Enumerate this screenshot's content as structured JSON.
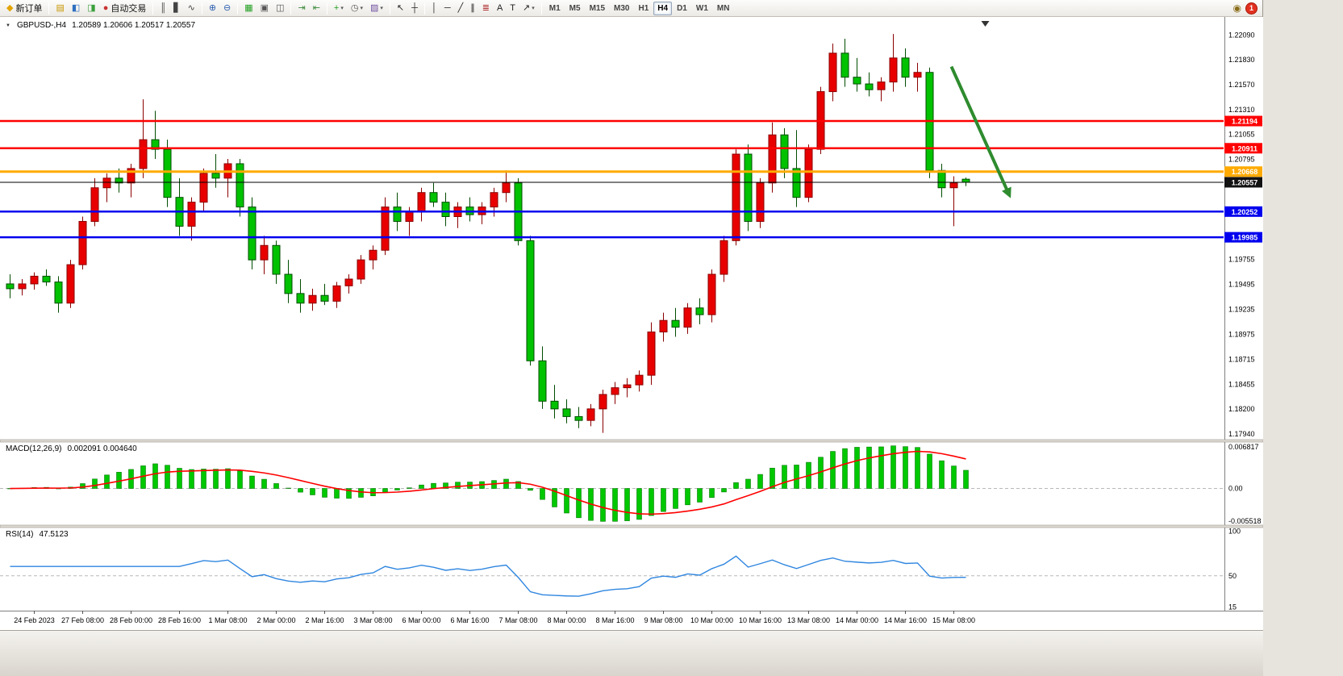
{
  "toolbar": {
    "notification_count": "1",
    "items": [
      {
        "type": "button",
        "name": "new-order-button",
        "glyph": "◆",
        "glyph_color": "#e3a400",
        "label": "新订单"
      },
      {
        "type": "sep"
      },
      {
        "type": "button",
        "name": "new-chart-button",
        "glyph": "▤",
        "glyph_color": "#c89600"
      },
      {
        "type": "button",
        "name": "market-watch-button",
        "glyph": "◧",
        "glyph_color": "#2e6fc0"
      },
      {
        "type": "button",
        "name": "navigator-button",
        "glyph": "◨",
        "glyph_color": "#3aa03a"
      },
      {
        "type": "button",
        "name": "auto-trading-button",
        "glyph": "●",
        "glyph_color": "#c83232",
        "label": "自动交易"
      },
      {
        "type": "sep"
      },
      {
        "type": "button",
        "name": "bar-chart-button",
        "glyph": "║",
        "glyph_color": "#444444"
      },
      {
        "type": "button",
        "name": "candlestick-chart-button",
        "glyph": "▋",
        "glyph_color": "#444444"
      },
      {
        "type": "button",
        "name": "line-chart-button",
        "glyph": "∿",
        "glyph_color": "#444444"
      },
      {
        "type": "sep"
      },
      {
        "type": "button",
        "name": "zoom-in-button",
        "glyph": "⊕",
        "glyph_color": "#2e5fb0"
      },
      {
        "type": "button",
        "name": "zoom-out-button",
        "glyph": "⊖",
        "glyph_color": "#2e5fb0"
      },
      {
        "type": "sep"
      },
      {
        "type": "button",
        "name": "tile-windows-button",
        "glyph": "▦",
        "glyph_color": "#1f9f1f"
      },
      {
        "type": "button",
        "name": "cascade-windows-button",
        "glyph": "▣",
        "glyph_color": "#555555"
      },
      {
        "type": "button",
        "name": "arrange-windows-button",
        "glyph": "◫",
        "glyph_color": "#555555"
      },
      {
        "type": "sep"
      },
      {
        "type": "button",
        "name": "auto-scroll-button",
        "glyph": "⇥",
        "glyph_color": "#3a8a3a"
      },
      {
        "type": "button",
        "name": "chart-shift-button",
        "glyph": "⇤",
        "glyph_color": "#3a8a3a"
      },
      {
        "type": "sep"
      },
      {
        "type": "button",
        "name": "indicators-button",
        "glyph": "+",
        "glyph_color": "#1f9f1f",
        "caret": true
      },
      {
        "type": "button",
        "name": "periods-button",
        "glyph": "◷",
        "glyph_color": "#555555",
        "caret": true
      },
      {
        "type": "button",
        "name": "templates-button",
        "glyph": "▨",
        "glyph_color": "#7050a0",
        "caret": true
      },
      {
        "type": "sep"
      },
      {
        "type": "button",
        "name": "cursor-button",
        "glyph": "↖",
        "glyph_color": "#222222"
      },
      {
        "type": "button",
        "name": "crosshair-button",
        "glyph": "┼",
        "glyph_color": "#222222"
      },
      {
        "type": "sep"
      },
      {
        "type": "button",
        "name": "vertical-line-button",
        "glyph": "│",
        "glyph_color": "#222222"
      },
      {
        "type": "button",
        "name": "horizontal-line-button",
        "glyph": "─",
        "glyph_color": "#222222"
      },
      {
        "type": "button",
        "name": "trendline-button",
        "glyph": "╱",
        "glyph_color": "#222222"
      },
      {
        "type": "button",
        "name": "channel-button",
        "glyph": "∥",
        "glyph_color": "#222222"
      },
      {
        "type": "button",
        "name": "fibonacci-button",
        "glyph": "≣",
        "glyph_color": "#b03030"
      },
      {
        "type": "button",
        "name": "text-button",
        "glyph": "A",
        "glyph_color": "#222222"
      },
      {
        "type": "button",
        "name": "text-label-button",
        "glyph": "T",
        "glyph_color": "#222222"
      },
      {
        "type": "button",
        "name": "arrows-button",
        "glyph": "↗",
        "glyph_color": "#222222",
        "caret": true
      },
      {
        "type": "sep"
      },
      {
        "type": "tf",
        "name": "timeframe-m1",
        "label": "M1"
      },
      {
        "type": "tf",
        "name": "timeframe-m5",
        "label": "M5"
      },
      {
        "type": "tf",
        "name": "timeframe-m15",
        "label": "M15"
      },
      {
        "type": "tf",
        "name": "timeframe-m30",
        "label": "M30"
      },
      {
        "type": "tf",
        "name": "timeframe-h1",
        "label": "H1"
      },
      {
        "type": "tf",
        "name": "timeframe-h4",
        "label": "H4",
        "active": true
      },
      {
        "type": "tf",
        "name": "timeframe-d1",
        "label": "D1"
      },
      {
        "type": "tf",
        "name": "timeframe-w1",
        "label": "W1"
      },
      {
        "type": "tf",
        "name": "timeframe-mn",
        "label": "MN"
      }
    ]
  },
  "chart": {
    "symbol_period": "GBPUSD-,H4",
    "ohlc": "1.20589 1.20606 1.20517 1.20557"
  },
  "chart_data": {
    "type": "candlestick",
    "symbol": "GBPUSD-",
    "timeframe": "H4",
    "colors": {
      "up": "#e80000",
      "down": "#00c200",
      "background": "#ffffff"
    },
    "price_axis": {
      "min": 1.1788,
      "max": 1.2226,
      "labels": [
        "1.22090",
        "1.21830",
        "1.21570",
        "1.21310",
        "1.21055",
        "1.20795",
        "1.19755",
        "1.19495",
        "1.19235",
        "1.18975",
        "1.18715",
        "1.18455",
        "1.18200",
        "1.17940"
      ]
    },
    "hlines": [
      {
        "name": "resistance-line-upper",
        "value": 1.21194,
        "label": "1.21194",
        "color": "#ff0000",
        "width": 2.5
      },
      {
        "name": "resistance-line-lower",
        "value": 1.20911,
        "label": "1.20911",
        "color": "#ff0000",
        "width": 2.5
      },
      {
        "name": "pivot-line-orange",
        "value": 1.20668,
        "label": "1.20668",
        "color": "#ffaa00",
        "width": 3
      },
      {
        "name": "current-price-line",
        "value": 1.20557,
        "label": "1.20557",
        "color": "#000000",
        "width": 1,
        "badge": "#111111"
      },
      {
        "name": "support-line-upper",
        "value": 1.20252,
        "label": "1.20252",
        "color": "#0000ee",
        "width": 2.5
      },
      {
        "name": "support-line-lower",
        "value": 1.19985,
        "label": "1.19985",
        "color": "#0000ee",
        "width": 2.5
      }
    ],
    "arrow": {
      "from_index": 77.8,
      "from_price": 1.2176,
      "to_index": 82.6,
      "to_price": 1.2042,
      "color": "#2e8b2e",
      "width": 4
    },
    "candles": [
      [
        1.195,
        1.196,
        1.1935,
        1.1945
      ],
      [
        1.1945,
        1.1955,
        1.1938,
        1.195
      ],
      [
        1.195,
        1.1962,
        1.1944,
        1.1958
      ],
      [
        1.1958,
        1.1965,
        1.1948,
        1.1952
      ],
      [
        1.1952,
        1.1958,
        1.192,
        1.193
      ],
      [
        1.193,
        1.1975,
        1.1925,
        1.197
      ],
      [
        1.197,
        1.202,
        1.1965,
        1.2015
      ],
      [
        1.2015,
        1.206,
        1.201,
        1.205
      ],
      [
        1.205,
        1.2065,
        1.2035,
        1.206
      ],
      [
        1.206,
        1.207,
        1.2045,
        1.2055
      ],
      [
        1.2055,
        1.2075,
        1.204,
        1.207
      ],
      [
        1.207,
        1.2142,
        1.206,
        1.21
      ],
      [
        1.21,
        1.213,
        1.208,
        1.209
      ],
      [
        1.209,
        1.21,
        1.203,
        1.204
      ],
      [
        1.204,
        1.206,
        1.2,
        1.201
      ],
      [
        1.201,
        1.204,
        1.1995,
        1.2035
      ],
      [
        1.2035,
        1.207,
        1.2025,
        1.2065
      ],
      [
        1.2065,
        1.2085,
        1.205,
        1.206
      ],
      [
        1.206,
        1.208,
        1.204,
        1.2075
      ],
      [
        1.2075,
        1.208,
        1.202,
        1.203
      ],
      [
        1.203,
        1.204,
        1.1965,
        1.1975
      ],
      [
        1.1975,
        1.2,
        1.196,
        1.199
      ],
      [
        1.199,
        1.1995,
        1.195,
        1.196
      ],
      [
        1.196,
        1.1975,
        1.193,
        1.194
      ],
      [
        1.194,
        1.1955,
        1.192,
        1.193
      ],
      [
        1.193,
        1.1945,
        1.1922,
        1.1938
      ],
      [
        1.1938,
        1.195,
        1.1928,
        1.1932
      ],
      [
        1.1932,
        1.1952,
        1.1925,
        1.1948
      ],
      [
        1.1948,
        1.196,
        1.194,
        1.1955
      ],
      [
        1.1955,
        1.198,
        1.195,
        1.1975
      ],
      [
        1.1975,
        1.199,
        1.1965,
        1.1985
      ],
      [
        1.1985,
        1.204,
        1.198,
        1.203
      ],
      [
        1.203,
        1.2045,
        1.2005,
        1.2015
      ],
      [
        1.2015,
        1.203,
        1.2,
        1.2025
      ],
      [
        1.2025,
        1.205,
        1.2015,
        1.2045
      ],
      [
        1.2045,
        1.2055,
        1.203,
        1.2035
      ],
      [
        1.2035,
        1.2045,
        1.201,
        1.202
      ],
      [
        1.202,
        1.2035,
        1.2008,
        1.203
      ],
      [
        1.203,
        1.204,
        1.2015,
        1.2022
      ],
      [
        1.2022,
        1.2035,
        1.2012,
        1.203
      ],
      [
        1.203,
        1.205,
        1.202,
        1.2045
      ],
      [
        1.2045,
        1.2068,
        1.2035,
        1.2055
      ],
      [
        1.2055,
        1.206,
        1.199,
        1.1995
      ],
      [
        1.1995,
        1.2,
        1.1865,
        1.187
      ],
      [
        1.187,
        1.1885,
        1.182,
        1.1828
      ],
      [
        1.1828,
        1.1845,
        1.181,
        1.182
      ],
      [
        1.182,
        1.183,
        1.1805,
        1.1812
      ],
      [
        1.1812,
        1.1822,
        1.18,
        1.1808
      ],
      [
        1.1808,
        1.1825,
        1.1802,
        1.182
      ],
      [
        1.182,
        1.184,
        1.1795,
        1.1835
      ],
      [
        1.1835,
        1.1848,
        1.1825,
        1.1842
      ],
      [
        1.1842,
        1.1852,
        1.1832,
        1.1845
      ],
      [
        1.1845,
        1.186,
        1.1838,
        1.1855
      ],
      [
        1.1855,
        1.191,
        1.1845,
        1.19
      ],
      [
        1.19,
        1.192,
        1.189,
        1.1912
      ],
      [
        1.1912,
        1.1925,
        1.1895,
        1.1905
      ],
      [
        1.1905,
        1.193,
        1.1898,
        1.1925
      ],
      [
        1.1925,
        1.1935,
        1.1908,
        1.1918
      ],
      [
        1.1918,
        1.1965,
        1.191,
        1.196
      ],
      [
        1.196,
        1.2,
        1.1952,
        1.1995
      ],
      [
        1.1995,
        1.209,
        1.199,
        1.2085
      ],
      [
        1.2085,
        1.2095,
        1.2005,
        1.2015
      ],
      [
        1.2015,
        1.206,
        1.2008,
        1.2055
      ],
      [
        1.2055,
        1.2118,
        1.2045,
        1.2105
      ],
      [
        1.2105,
        1.2112,
        1.206,
        1.207
      ],
      [
        1.207,
        1.211,
        1.203,
        1.204
      ],
      [
        1.204,
        1.2095,
        1.2035,
        1.209
      ],
      [
        1.209,
        1.2155,
        1.2085,
        1.215
      ],
      [
        1.215,
        1.22,
        1.214,
        1.219
      ],
      [
        1.219,
        1.2205,
        1.2155,
        1.2165
      ],
      [
        1.2165,
        1.2185,
        1.215,
        1.2158
      ],
      [
        1.2158,
        1.217,
        1.2145,
        1.2152
      ],
      [
        1.2152,
        1.2165,
        1.214,
        1.216
      ],
      [
        1.216,
        1.221,
        1.215,
        1.2185
      ],
      [
        1.2185,
        1.2195,
        1.2155,
        1.2165
      ],
      [
        1.2165,
        1.218,
        1.215,
        1.217
      ],
      [
        1.217,
        1.2175,
        1.206,
        1.2068
      ],
      [
        1.2068,
        1.2075,
        1.204,
        1.205
      ],
      [
        1.205,
        1.2062,
        1.201,
        1.2055
      ],
      [
        1.20589,
        1.20606,
        1.20517,
        1.20557
      ]
    ],
    "time_labels": [
      {
        "i": 2,
        "label": "24 Feb 2023"
      },
      {
        "i": 6,
        "label": "27 Feb 08:00"
      },
      {
        "i": 10,
        "label": "28 Feb 00:00"
      },
      {
        "i": 14,
        "label": "28 Feb 16:00"
      },
      {
        "i": 18,
        "label": "1 Mar 08:00"
      },
      {
        "i": 22,
        "label": "2 Mar 00:00"
      },
      {
        "i": 26,
        "label": "2 Mar 16:00"
      },
      {
        "i": 30,
        "label": "3 Mar 08:00"
      },
      {
        "i": 34,
        "label": "6 Mar 00:00"
      },
      {
        "i": 38,
        "label": "6 Mar 16:00"
      },
      {
        "i": 42,
        "label": "7 Mar 08:00"
      },
      {
        "i": 46,
        "label": "8 Mar 00:00"
      },
      {
        "i": 50,
        "label": "8 Mar 16:00"
      },
      {
        "i": 54,
        "label": "9 Mar 08:00"
      },
      {
        "i": 58,
        "label": "10 Mar 00:00"
      },
      {
        "i": 62,
        "label": "10 Mar 16:00"
      },
      {
        "i": 66,
        "label": "13 Mar 08:00"
      },
      {
        "i": 70,
        "label": "14 Mar 00:00"
      },
      {
        "i": 74,
        "label": "14 Mar 16:00"
      },
      {
        "i": 78,
        "label": "15 Mar 08:00"
      }
    ],
    "macd": {
      "label": "MACD(12,26,9)",
      "values_text": "0.002091 0.004640",
      "params": [
        12,
        26,
        9
      ],
      "axis_labels": [
        "0.006817",
        "0.00",
        "-0.005518"
      ],
      "histogram_color": "#00c800",
      "signal_color": "#ff0000"
    },
    "rsi": {
      "label": "RSI(14)",
      "value_text": "47.5123",
      "period": 14,
      "axis_labels": [
        "100",
        "50",
        "15"
      ],
      "line_color": "#2f86e0",
      "levels": [
        50
      ]
    }
  }
}
